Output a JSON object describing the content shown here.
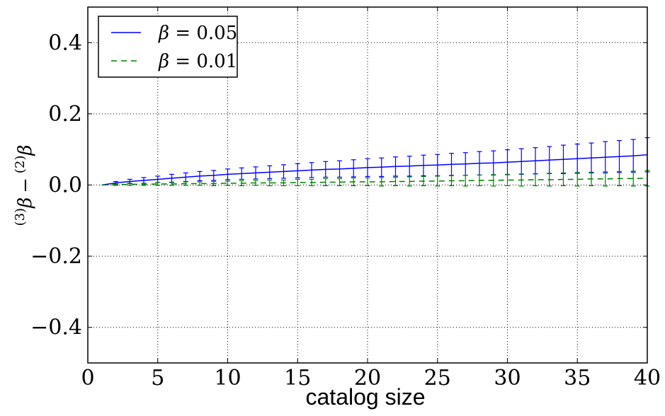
{
  "chart_data": {
    "type": "line",
    "title": "",
    "xlabel": "catalog size",
    "ylabel": "(3)β − (2)β",
    "xlim": [
      0,
      40
    ],
    "ylim": [
      -0.5,
      0.5
    ],
    "x_ticks": [
      0,
      5,
      10,
      15,
      20,
      25,
      30,
      35,
      40
    ],
    "x_tick_labels": [
      "0",
      "5",
      "10",
      "15",
      "20",
      "25",
      "30",
      "35",
      "40"
    ],
    "y_ticks": [
      -0.4,
      -0.2,
      0.0,
      0.2,
      0.4
    ],
    "y_tick_labels": [
      "−0.4",
      "−0.2",
      "0.0",
      "0.2",
      "0.4"
    ],
    "grid": true,
    "legend_position": "top-left",
    "x": [
      1,
      2,
      3,
      4,
      5,
      6,
      7,
      8,
      9,
      10,
      11,
      12,
      13,
      14,
      15,
      16,
      17,
      18,
      19,
      20,
      21,
      22,
      23,
      24,
      25,
      26,
      27,
      28,
      29,
      30,
      31,
      32,
      33,
      34,
      35,
      36,
      37,
      38,
      39,
      40
    ],
    "series": [
      {
        "name": "β = 0.05",
        "color": "#0000ff",
        "line_style": "solid",
        "values": [
          0.0,
          0.006,
          0.01,
          0.013,
          0.016,
          0.019,
          0.022,
          0.025,
          0.027,
          0.03,
          0.032,
          0.034,
          0.036,
          0.038,
          0.04,
          0.042,
          0.044,
          0.045,
          0.047,
          0.049,
          0.05,
          0.052,
          0.053,
          0.055,
          0.056,
          0.058,
          0.059,
          0.061,
          0.062,
          0.064,
          0.066,
          0.068,
          0.07,
          0.072,
          0.074,
          0.076,
          0.078,
          0.08,
          0.082,
          0.085
        ],
        "errors": [
          0.0,
          0.004,
          0.006,
          0.008,
          0.009,
          0.011,
          0.012,
          0.013,
          0.014,
          0.015,
          0.016,
          0.017,
          0.018,
          0.019,
          0.02,
          0.021,
          0.022,
          0.023,
          0.024,
          0.025,
          0.026,
          0.027,
          0.028,
          0.029,
          0.03,
          0.031,
          0.032,
          0.033,
          0.034,
          0.035,
          0.036,
          0.037,
          0.038,
          0.04,
          0.041,
          0.042,
          0.044,
          0.045,
          0.046,
          0.048
        ]
      },
      {
        "name": "β = 0.01",
        "color": "#008000",
        "line_style": "dashed",
        "values": [
          0.0,
          0.001,
          0.002,
          0.002,
          0.003,
          0.003,
          0.004,
          0.004,
          0.004,
          0.005,
          0.005,
          0.006,
          0.006,
          0.006,
          0.007,
          0.007,
          0.008,
          0.008,
          0.009,
          0.009,
          0.009,
          0.01,
          0.01,
          0.011,
          0.011,
          0.012,
          0.012,
          0.013,
          0.013,
          0.014,
          0.014,
          0.015,
          0.015,
          0.016,
          0.016,
          0.017,
          0.017,
          0.018,
          0.018,
          0.019
        ],
        "errors": [
          0.0,
          0.002,
          0.003,
          0.003,
          0.004,
          0.004,
          0.005,
          0.005,
          0.006,
          0.006,
          0.007,
          0.007,
          0.008,
          0.008,
          0.009,
          0.009,
          0.01,
          0.01,
          0.011,
          0.011,
          0.012,
          0.012,
          0.013,
          0.013,
          0.014,
          0.014,
          0.015,
          0.015,
          0.016,
          0.016,
          0.017,
          0.017,
          0.018,
          0.018,
          0.019,
          0.019,
          0.02,
          0.02,
          0.021,
          0.022
        ]
      }
    ],
    "legend_entries": [
      {
        "symbol": "β",
        "value": " = 0.05"
      },
      {
        "symbol": "β",
        "value": " = 0.01"
      }
    ],
    "ylabel_parts": {
      "sup_a": "(3)",
      "base_a": "β",
      "minus": "−",
      "sup_b": "(2)",
      "base_b": "β"
    }
  }
}
